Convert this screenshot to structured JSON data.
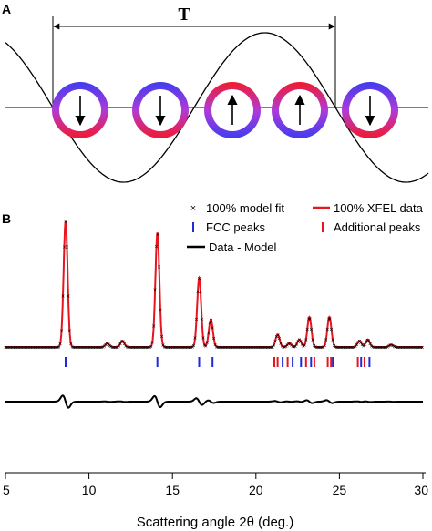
{
  "panel_a": {
    "label": "A",
    "period_label": "T",
    "moments": [
      "down",
      "down",
      "up",
      "up",
      "down"
    ]
  },
  "panel_b": {
    "label": "B"
  },
  "legend": {
    "model_fit": "100%  model fit",
    "xfel_data": "100% XFEL data",
    "fcc_peaks": "FCC peaks",
    "additional_peaks": "Additional peaks",
    "difference": "Data - Model"
  },
  "colors": {
    "xfel": "#e8141e",
    "model": "#b79ce8",
    "fcc": "#1f2bd6",
    "additional": "#e8141e",
    "difference": "#000000",
    "ring_blue": "#3d3dec",
    "ring_red": "#ee1b3a"
  },
  "chart_data": {
    "type": "line",
    "xlabel": "Scattering angle 2θ (deg.)",
    "xlim": [
      5,
      30
    ],
    "x_ticks": [
      "5",
      "10",
      "15",
      "20",
      "25",
      "30"
    ],
    "peaks": [
      {
        "x": 8.6,
        "height": 1.0
      },
      {
        "x": 11.1,
        "height": 0.03
      },
      {
        "x": 12.0,
        "height": 0.05
      },
      {
        "x": 14.1,
        "height": 0.91
      },
      {
        "x": 16.6,
        "height": 0.55
      },
      {
        "x": 17.3,
        "height": 0.22
      },
      {
        "x": 21.3,
        "height": 0.1
      },
      {
        "x": 22.0,
        "height": 0.03
      },
      {
        "x": 22.6,
        "height": 0.06
      },
      {
        "x": 23.2,
        "height": 0.24
      },
      {
        "x": 24.4,
        "height": 0.24
      },
      {
        "x": 26.2,
        "height": 0.05
      },
      {
        "x": 26.7,
        "height": 0.06
      },
      {
        "x": 28.1,
        "height": 0.02
      }
    ],
    "fcc_peak_positions": [
      8.6,
      14.1,
      16.6,
      17.4,
      21.6,
      22.2,
      22.7,
      23.3,
      24.6,
      26.3,
      26.8
    ],
    "additional_peak_positions": [
      21.1,
      21.3,
      21.9,
      23.0,
      23.5,
      24.3,
      24.5,
      26.1,
      26.5
    ]
  }
}
